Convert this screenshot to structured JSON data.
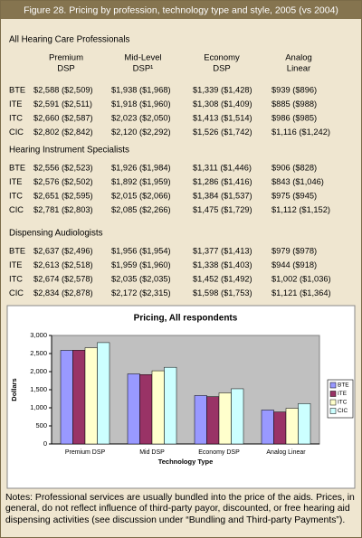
{
  "header": {
    "title": "Figure 28. Pricing by profession, technology type and style, 2005 (vs 2004)"
  },
  "table": {
    "columns": [
      [
        "Premium",
        "DSP"
      ],
      [
        "Mid-Level",
        "DSP¹"
      ],
      [
        "Economy",
        "DSP"
      ],
      [
        "Analog",
        "Linear"
      ]
    ],
    "groups": [
      {
        "name": "All Hearing Care Professionals",
        "rows": [
          [
            "BTE",
            "$2,588 ($2,509)",
            "$1,938 ($1,968)",
            "$1,339 ($1,428)",
            "$939 ($896)"
          ],
          [
            "ITE",
            "$2,591 ($2,511)",
            "$1,918 ($1,960)",
            "$1,308 ($1,409)",
            "$885 ($988)"
          ],
          [
            "ITC",
            "$2,660 ($2,587)",
            "$2,023 ($2,050)",
            "$1,413 ($1,514)",
            "$986 ($985)"
          ],
          [
            "CIC",
            "$2,802 ($2,842)",
            "$2,120 ($2,292)",
            "$1,526 ($1,742)",
            "$1,116 ($1,242)"
          ]
        ]
      },
      {
        "name": "Hearing Instrument Specialists",
        "rows": [
          [
            "BTE",
            "$2,556 ($2,523)",
            "$1,926 ($1,984)",
            "$1,311 ($1,446)",
            "$906 ($828)"
          ],
          [
            "ITE",
            "$2,576 ($2,502)",
            "$1,892 ($1,959)",
            "$1,286 ($1,416)",
            "$843 ($1,046)"
          ],
          [
            "ITC",
            "$2,651 ($2,595)",
            "$2,015 ($2,066)",
            "$1,384 ($1,537)",
            "$975 ($945)"
          ],
          [
            "CIC",
            "$2,781 ($2,803)",
            "$2,085 ($2,266)",
            "$1,475 ($1,729)",
            "$1,112 ($1,152)"
          ]
        ]
      },
      {
        "name": "Dispensing Audiologists",
        "rows": [
          [
            "BTE",
            "$2,637 ($2,496)",
            "$1,956 ($1,954)",
            "$1,377 ($1,413)",
            "$979 ($978)"
          ],
          [
            "ITE",
            "$2,613 ($2,518)",
            "$1,959 ($1,960)",
            "$1,338 ($1,403)",
            "$944 ($918)"
          ],
          [
            "ITC",
            "$2,674 ($2,578)",
            "$2,035 ($2,035)",
            "$1,452 ($1,492)",
            "$1,002 ($1,036)"
          ],
          [
            "CIC",
            "$2,834 ($2,878)",
            "$2,172 ($2,315)",
            "$1,598 ($1,753)",
            "$1,121 ($1,364)"
          ]
        ]
      }
    ]
  },
  "chart_data": {
    "type": "bar",
    "title": "Pricing, All respondents",
    "x_label": "Technology Type",
    "y_label": "Dollars",
    "categories": [
      "Premium DSP",
      "Mid DSP",
      "Economy DSP",
      "Analog Linear"
    ],
    "series": [
      {
        "name": "BTE",
        "color": "#9999ff",
        "values": [
          2588,
          1938,
          1339,
          939
        ]
      },
      {
        "name": "ITE",
        "color": "#993366",
        "values": [
          2591,
          1918,
          1308,
          885
        ]
      },
      {
        "name": "ITC",
        "color": "#ffffcc",
        "values": [
          2660,
          2023,
          1413,
          986
        ]
      },
      {
        "name": "CIC",
        "color": "#ccffff",
        "values": [
          2802,
          2120,
          1526,
          1116
        ]
      }
    ],
    "ylim": [
      0,
      3000
    ],
    "yticks": [
      0,
      500,
      {
        "value": 1000,
        "label": "1,000"
      },
      {
        "value": 1500,
        "label": "1,500"
      },
      {
        "value": 2000,
        "label": "2,000"
      },
      {
        "value": 2500,
        "label": "2,500"
      },
      {
        "value": 3000,
        "label": "3,000"
      }
    ],
    "grid": false,
    "legend": "right"
  },
  "notes": "Notes: Professional services are usually bundled into the price of the aids. Prices, in general, do not reflect influence of third-party payor, discounted, or free hearing aid dispensing activities (see discussion under “Bundling and Third-party Payments”)."
}
